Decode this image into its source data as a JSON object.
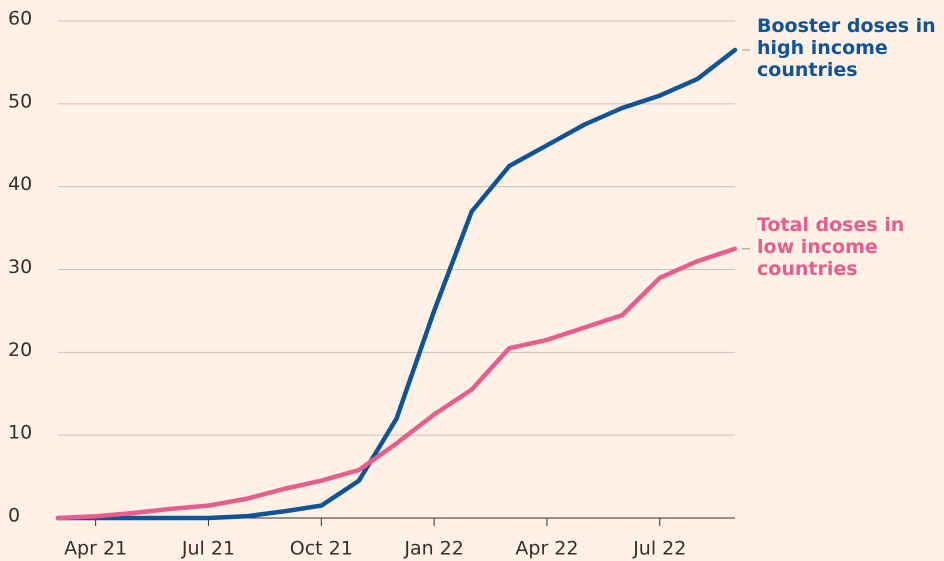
{
  "chart_data": {
    "type": "line",
    "x": [
      "2021-03",
      "2021-04",
      "2021-05",
      "2021-06",
      "2021-07",
      "2021-08",
      "2021-09",
      "2021-10",
      "2021-11",
      "2021-12",
      "2022-01",
      "2022-02",
      "2022-03",
      "2022-04",
      "2022-05",
      "2022-06",
      "2022-07",
      "2022-08",
      "2022-09"
    ],
    "series": [
      {
        "name": "Booster doses in high income countries",
        "color": "#0f5499",
        "values": [
          0,
          0,
          0,
          0,
          0,
          0.2,
          0.8,
          1.5,
          4.5,
          12,
          25,
          37,
          42.5,
          45,
          47.5,
          49.5,
          51,
          53,
          56.5
        ]
      },
      {
        "name": "Total doses in low income countries",
        "color": "#e95d8c",
        "values": [
          0,
          0.2,
          0.6,
          1.1,
          1.5,
          2.3,
          3.5,
          4.5,
          5.8,
          9,
          12.5,
          15.5,
          20.5,
          21.5,
          23,
          24.5,
          29,
          31,
          32.5
        ]
      }
    ],
    "xlim": [
      "2021-03",
      "2022-09"
    ],
    "xticks": [
      {
        "value": "2021-04",
        "label": "Apr 21"
      },
      {
        "value": "2021-07",
        "label": "Jul 21"
      },
      {
        "value": "2021-10",
        "label": "Oct 21"
      },
      {
        "value": "2022-01",
        "label": "Jan 22"
      },
      {
        "value": "2022-04",
        "label": "Apr 22"
      },
      {
        "value": "2022-07",
        "label": "Jul 22"
      }
    ],
    "ylim": [
      0,
      60
    ],
    "yticks": [
      0,
      10,
      20,
      30,
      40,
      50,
      60
    ],
    "grid": true
  }
}
